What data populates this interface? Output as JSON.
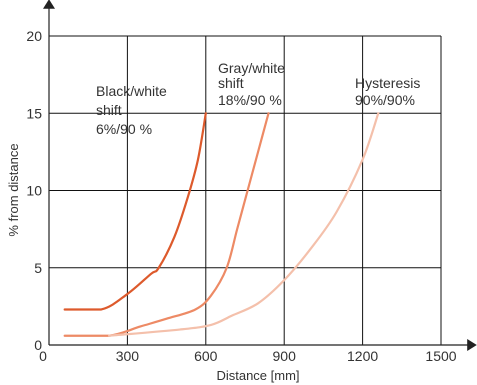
{
  "chart_data": {
    "type": "line",
    "title": "",
    "xlabel": "Distance [mm]",
    "ylabel": "% from distance",
    "xlim": [
      0,
      1500
    ],
    "ylim": [
      0,
      20
    ],
    "xticks": [
      0,
      300,
      600,
      900,
      1200,
      1500
    ],
    "yticks": [
      0,
      5,
      10,
      15,
      20
    ],
    "grid": true,
    "series": [
      {
        "color": "#dd5a2c",
        "points": [
          [
            60,
            2.3
          ],
          [
            200,
            2.3
          ],
          [
            300,
            3.3
          ],
          [
            390,
            4.6
          ],
          [
            420,
            5.0
          ],
          [
            480,
            7.0
          ],
          [
            530,
            9.5
          ],
          [
            570,
            12.0
          ],
          [
            600,
            15.0
          ]
        ]
      },
      {
        "color": "#ed8a65",
        "points": [
          [
            60,
            0.6
          ],
          [
            230,
            0.6
          ],
          [
            350,
            1.2
          ],
          [
            450,
            1.7
          ],
          [
            560,
            2.3
          ],
          [
            620,
            3.2
          ],
          [
            680,
            5.0
          ],
          [
            720,
            7.5
          ],
          [
            760,
            10.0
          ],
          [
            800,
            12.5
          ],
          [
            840,
            15.0
          ]
        ]
      },
      {
        "color": "#f4c0ab",
        "points": [
          [
            230,
            0.6
          ],
          [
            500,
            1.0
          ],
          [
            620,
            1.3
          ],
          [
            700,
            1.9
          ],
          [
            800,
            2.7
          ],
          [
            900,
            4.2
          ],
          [
            1000,
            6.2
          ],
          [
            1100,
            8.6
          ],
          [
            1200,
            12.0
          ],
          [
            1260,
            15.0
          ]
        ]
      }
    ],
    "annotations": [
      {
        "lines": [
          "Black/white",
          "shift",
          "6%/90 %"
        ]
      },
      {
        "lines": [
          "Gray/white",
          "shift",
          "18%/90 %"
        ]
      },
      {
        "lines": [
          "Hysteresis",
          "90%/90%"
        ]
      }
    ]
  }
}
